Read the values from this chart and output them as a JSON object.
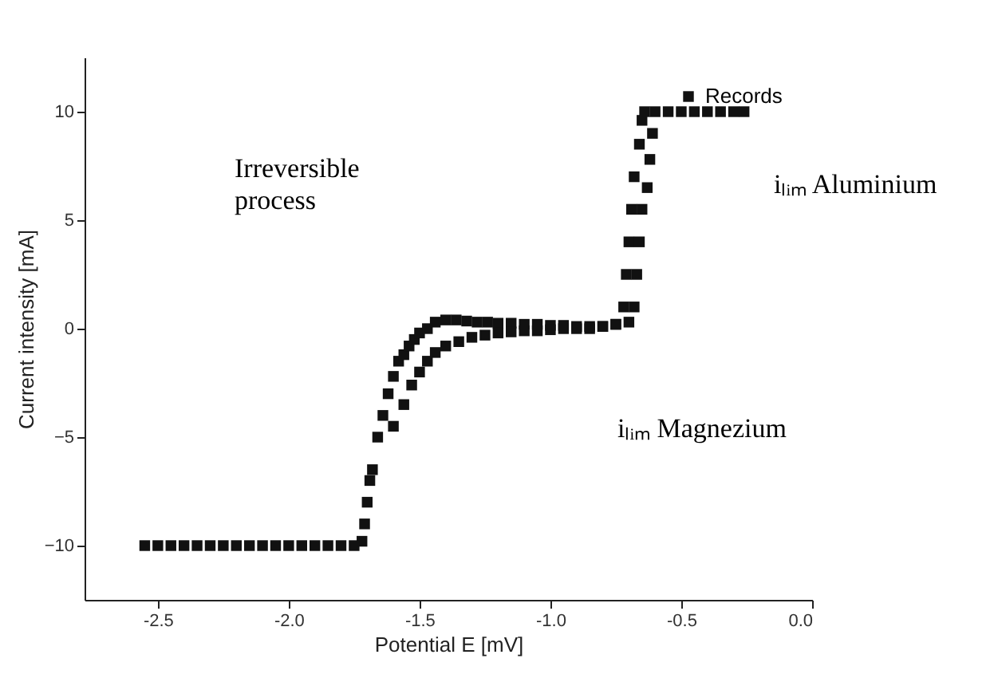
{
  "chart_data": {
    "type": "scatter",
    "xlabel": "Potential E [mV]",
    "ylabel": "Current intensity [mA]",
    "xlim": [
      -2.78,
      0
    ],
    "ylim": [
      -12.5,
      12.5
    ],
    "xticks": [
      {
        "value": -2.5,
        "label": "-2.5"
      },
      {
        "value": -2,
        "label": "-2.0"
      },
      {
        "value": -1.5,
        "label": "-1.5"
      },
      {
        "value": -1,
        "label": "-1.0"
      },
      {
        "value": -0.5,
        "label": "-0.5"
      },
      {
        "value": 0,
        "label": "0.0"
      }
    ],
    "yticks": [
      -10,
      -5,
      0,
      5,
      10
    ],
    "marker": "square",
    "legend": "top right",
    "grid": false,
    "annotations": [
      "Irreversible process",
      "iₗᵢₘ Aluminium",
      "iₗᵢₘ Magnezium"
    ],
    "series": [
      {
        "name": "Records",
        "color": "#111111",
        "x": [
          -2.55,
          -2.5,
          -2.45,
          -2.4,
          -2.35,
          -2.3,
          -2.25,
          -2.2,
          -2.15,
          -2.1,
          -2.05,
          -2.0,
          -1.95,
          -1.9,
          -1.85,
          -1.8,
          -1.75,
          -1.72,
          -1.71,
          -1.7,
          -1.69,
          -1.68,
          -1.66,
          -1.64,
          -1.62,
          -1.6,
          -1.58,
          -1.56,
          -1.54,
          -1.52,
          -1.5,
          -1.47,
          -1.44,
          -1.4,
          -1.36,
          -1.32,
          -1.28,
          -1.24,
          -1.2,
          -1.15,
          -1.1,
          -1.05,
          -1.0,
          -0.95,
          -0.9,
          -0.85,
          -0.8,
          -0.75,
          -0.72,
          -0.71,
          -0.7,
          -0.69,
          -0.68,
          -0.66,
          -0.65,
          -0.64,
          -0.6,
          -0.55,
          -0.5,
          -0.45,
          -0.4,
          -0.35,
          -0.3,
          -0.26,
          -0.61,
          -0.62,
          -0.63,
          -0.65,
          -0.66,
          -0.67,
          -0.68,
          -0.7,
          -0.75,
          -0.8,
          -0.85,
          -0.9,
          -0.95,
          -1.0,
          -1.05,
          -1.1,
          -1.15,
          -1.2,
          -1.25,
          -1.3,
          -1.35,
          -1.4,
          -1.44,
          -1.47,
          -1.5,
          -1.53,
          -1.56,
          -1.6
        ],
        "values": [
          -10,
          -10,
          -10,
          -10,
          -10,
          -10,
          -10,
          -10,
          -10,
          -10,
          -10,
          -10,
          -10,
          -10,
          -10,
          -10,
          -10,
          -9.8,
          -9,
          -8,
          -7,
          -6.5,
          -5,
          -4,
          -3,
          -2.2,
          -1.5,
          -1.2,
          -0.8,
          -0.5,
          -0.2,
          0,
          0.3,
          0.4,
          0.4,
          0.35,
          0.3,
          0.3,
          0.25,
          0.25,
          0.2,
          0.2,
          0.15,
          0.15,
          0.1,
          0.1,
          0.1,
          0.2,
          1,
          2.5,
          4,
          5.5,
          7,
          8.5,
          9.6,
          10,
          10,
          10,
          10,
          10,
          10,
          10,
          10,
          10,
          9,
          7.8,
          6.5,
          5.5,
          4,
          2.5,
          1,
          0.3,
          0.2,
          0.1,
          0,
          0,
          0,
          -0.05,
          -0.1,
          -0.1,
          -0.15,
          -0.2,
          -0.3,
          -0.4,
          -0.6,
          -0.8,
          -1.1,
          -1.5,
          -2,
          -2.6,
          -3.5,
          -4.5
        ]
      }
    ]
  }
}
